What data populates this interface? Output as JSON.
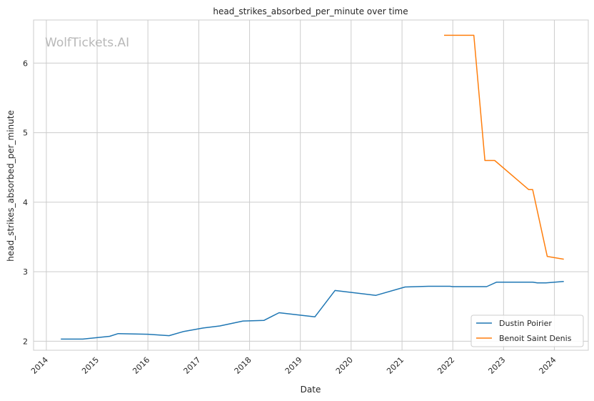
{
  "chart_data": {
    "type": "line",
    "title": "head_strikes_absorbed_per_minute over time",
    "xlabel": "Date",
    "ylabel": "head_strikes_absorbed_per_minute",
    "watermark": "WolfTickets.AI",
    "x_ticks": [
      "2014",
      "2015",
      "2016",
      "2017",
      "2018",
      "2019",
      "2020",
      "2021",
      "2022",
      "2023",
      "2024"
    ],
    "y_ticks": [
      2,
      3,
      4,
      5,
      6
    ],
    "xlim": [
      "2013-10-01",
      "2024-09-01"
    ],
    "ylim": [
      1.87,
      6.62
    ],
    "grid": true,
    "legend_position": "lower-right",
    "series": [
      {
        "name": "Dustin Poirier",
        "color": "#1f77b4",
        "points": [
          [
            "2014-04-15",
            2.03
          ],
          [
            "2014-09-20",
            2.03
          ],
          [
            "2015-04-01",
            2.07
          ],
          [
            "2015-06-01",
            2.11
          ],
          [
            "2016-01-01",
            2.1
          ],
          [
            "2016-06-01",
            2.08
          ],
          [
            "2016-09-15",
            2.14
          ],
          [
            "2017-02-01",
            2.19
          ],
          [
            "2017-06-01",
            2.22
          ],
          [
            "2017-11-15",
            2.29
          ],
          [
            "2018-04-15",
            2.3
          ],
          [
            "2018-08-01",
            2.41
          ],
          [
            "2019-04-15",
            2.35
          ],
          [
            "2019-09-07",
            2.73
          ],
          [
            "2020-06-27",
            2.66
          ],
          [
            "2021-01-23",
            2.78
          ],
          [
            "2021-07-10",
            2.79
          ],
          [
            "2021-12-11",
            2.79
          ],
          [
            "2022-01-01",
            2.785
          ],
          [
            "2022-09-01",
            2.785
          ],
          [
            "2022-11-12",
            2.85
          ],
          [
            "2023-07-29",
            2.85
          ],
          [
            "2023-09-01",
            2.84
          ],
          [
            "2023-11-01",
            2.84
          ],
          [
            "2024-03-09",
            2.86
          ]
        ]
      },
      {
        "name": "Benoit Saint Denis",
        "color": "#ff7f0e",
        "points": [
          [
            "2021-10-30",
            6.4
          ],
          [
            "2022-06-01",
            6.4
          ],
          [
            "2022-08-20",
            4.6
          ],
          [
            "2022-10-29",
            4.6
          ],
          [
            "2023-07-01",
            4.18
          ],
          [
            "2023-07-29",
            4.18
          ],
          [
            "2023-11-11",
            3.22
          ],
          [
            "2024-03-09",
            3.18
          ]
        ]
      }
    ]
  }
}
